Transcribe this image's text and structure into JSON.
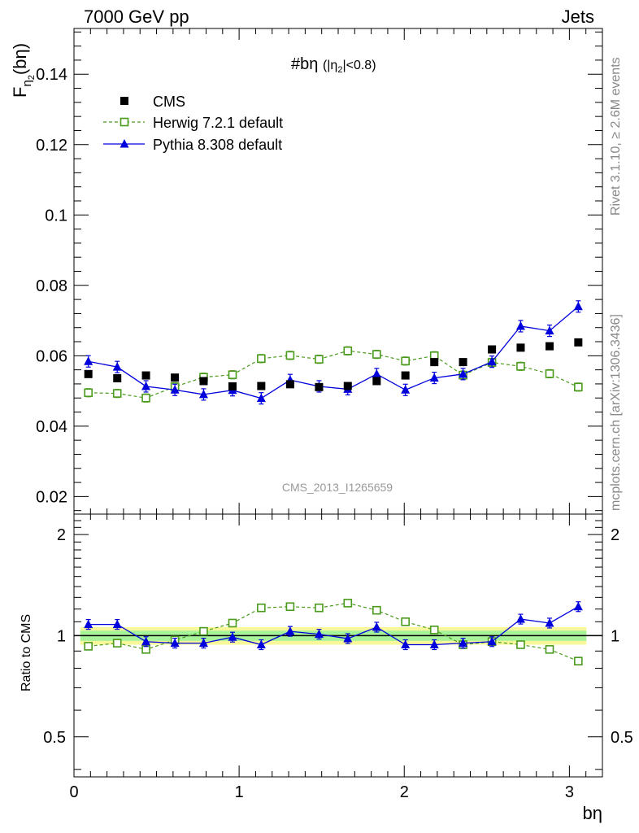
{
  "header": {
    "left": "7000 GeV pp",
    "right": "Jets"
  },
  "plot_label": "#bη (|η₂|<0.8)",
  "watermark": "CMS_2013_I1265659",
  "side_texts": {
    "rivet": "Rivet 3.1.10, ≥ 2.6M events",
    "mcplots": "mcplots.cern.ch [arXiv:1306.3436]"
  },
  "chart_data": [
    {
      "type": "scatter",
      "panel": "main",
      "ylabel": "Fη₂(bη)",
      "xlabel": "",
      "xlim": [
        0,
        3.2
      ],
      "ylim": [
        0.015,
        0.153
      ],
      "yticks": [
        0.02,
        0.04,
        0.06,
        0.08,
        0.1,
        0.12,
        0.14
      ],
      "ytick_labels": [
        "0.02",
        "0.04",
        "0.06",
        "0.08",
        "0.1",
        "0.12",
        "0.14"
      ],
      "legend_position": "top-left",
      "x": [
        0.087,
        0.262,
        0.436,
        0.611,
        0.785,
        0.96,
        1.134,
        1.309,
        1.484,
        1.658,
        1.833,
        2.007,
        2.182,
        2.356,
        2.531,
        2.705,
        2.88,
        3.054
      ],
      "series": [
        {
          "name": "CMS",
          "style": "black-square",
          "color": "#000000",
          "values": [
            0.0548,
            0.0536,
            0.0544,
            0.0538,
            0.0528,
            0.0513,
            0.0514,
            0.0519,
            0.0511,
            0.0514,
            0.0528,
            0.0544,
            0.0582,
            0.0582,
            0.0618,
            0.0623,
            0.0627,
            0.0638
          ]
        },
        {
          "name": "Herwig 7.2.1 default",
          "style": "green-open-square-dashed",
          "color": "#4a9a1c",
          "values": [
            0.0495,
            0.0493,
            0.048,
            0.0512,
            0.0539,
            0.0546,
            0.0592,
            0.0601,
            0.059,
            0.0614,
            0.0604,
            0.0585,
            0.06,
            0.0545,
            0.0581,
            0.057,
            0.0549,
            0.0511
          ]
        },
        {
          "name": "Pythia 8.308 default",
          "style": "blue-triangle-solid",
          "color": "#0000dd",
          "values": [
            0.0584,
            0.0568,
            0.0513,
            0.0503,
            0.049,
            0.0502,
            0.0479,
            0.0531,
            0.0513,
            0.0505,
            0.0548,
            0.0503,
            0.0537,
            0.0548,
            0.0583,
            0.0684,
            0.0671,
            0.074
          ]
        }
      ]
    },
    {
      "type": "scatter",
      "panel": "ratio",
      "ylabel": "Ratio to CMS",
      "xlabel": "bη",
      "xlim": [
        0,
        3.2
      ],
      "ylim": [
        0.38,
        2.3
      ],
      "yticks": [
        0.5,
        1,
        2
      ],
      "ytick_labels": [
        "0.5",
        "1",
        "2"
      ],
      "xticks": [
        0,
        1,
        2,
        3
      ],
      "xtick_labels": [
        "0",
        "1",
        "2",
        "3"
      ],
      "band": {
        "inner": 0.035,
        "outer": 0.06
      },
      "series": [
        {
          "name": "Herwig 7.2.1 default",
          "color": "#4a9a1c",
          "values": [
            0.93,
            0.95,
            0.91,
            0.97,
            1.03,
            1.09,
            1.21,
            1.22,
            1.21,
            1.25,
            1.19,
            1.1,
            1.04,
            0.94,
            0.96,
            0.94,
            0.91,
            0.84
          ]
        },
        {
          "name": "Pythia 8.308 default",
          "color": "#0000dd",
          "values": [
            1.08,
            1.08,
            0.96,
            0.95,
            0.95,
            0.99,
            0.94,
            1.03,
            1.01,
            0.98,
            1.06,
            0.94,
            0.94,
            0.95,
            0.96,
            1.12,
            1.09,
            1.22
          ]
        }
      ]
    }
  ]
}
